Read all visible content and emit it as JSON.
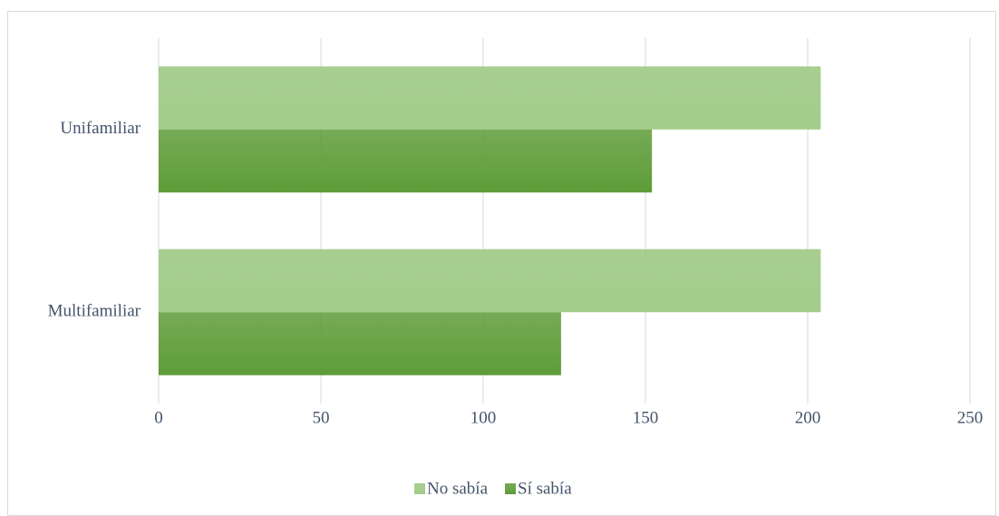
{
  "chart_data": {
    "type": "barh",
    "categories": [
      "Unifamiliar",
      "Multifamiliar"
    ],
    "series": [
      {
        "name": "No sabía",
        "color": "#a3cc8a",
        "values": [
          204,
          204
        ]
      },
      {
        "name": "Sí sabía",
        "color": "#5e9c38",
        "values": [
          152,
          124
        ]
      }
    ],
    "xlim": [
      0,
      250
    ],
    "xticks": [
      0,
      50,
      100,
      150,
      200,
      250
    ],
    "grid": true,
    "legend": "bottom"
  }
}
